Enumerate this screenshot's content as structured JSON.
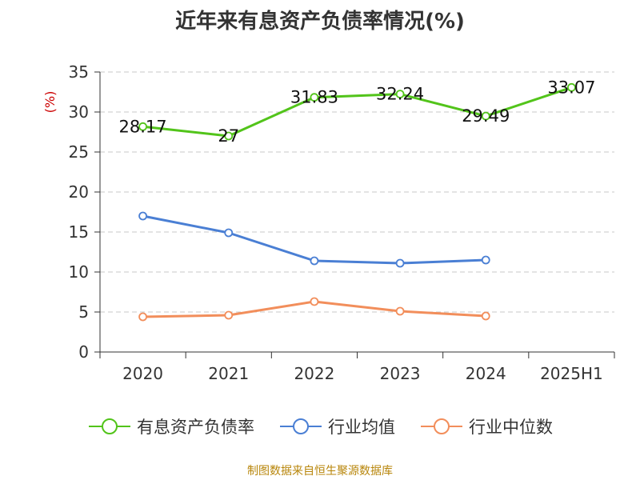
{
  "title": "近年来有息资产负债率情况(%)",
  "source_note": "制图数据来自恒生聚源数据库",
  "chart_data": {
    "type": "line",
    "title": "近年来有息资产负债率情况(%)",
    "xlabel": "",
    "ylabel": "(%)",
    "categories": [
      "2020",
      "2021",
      "2022",
      "2023",
      "2024",
      "2025H1"
    ],
    "ylim": [
      0,
      35
    ],
    "yticks": [
      0,
      5,
      10,
      15,
      20,
      25,
      30,
      35
    ],
    "grid": true,
    "legend_position": "bottom",
    "series": [
      {
        "name": "有息资产负债率",
        "color": "#52c41a",
        "labels": true,
        "values": [
          28.17,
          27,
          31.83,
          32.24,
          29.49,
          33.07
        ],
        "label_text": [
          "28.17",
          "27",
          "31.83",
          "32.24",
          "29.49",
          "33.07"
        ]
      },
      {
        "name": "行业均值",
        "color": "#4a7fd4",
        "labels": false,
        "values": [
          17.0,
          14.9,
          11.4,
          11.1,
          11.5,
          null
        ]
      },
      {
        "name": "行业中位数",
        "color": "#f28e5b",
        "labels": false,
        "values": [
          4.4,
          4.6,
          6.3,
          5.1,
          4.5,
          null
        ]
      }
    ]
  }
}
